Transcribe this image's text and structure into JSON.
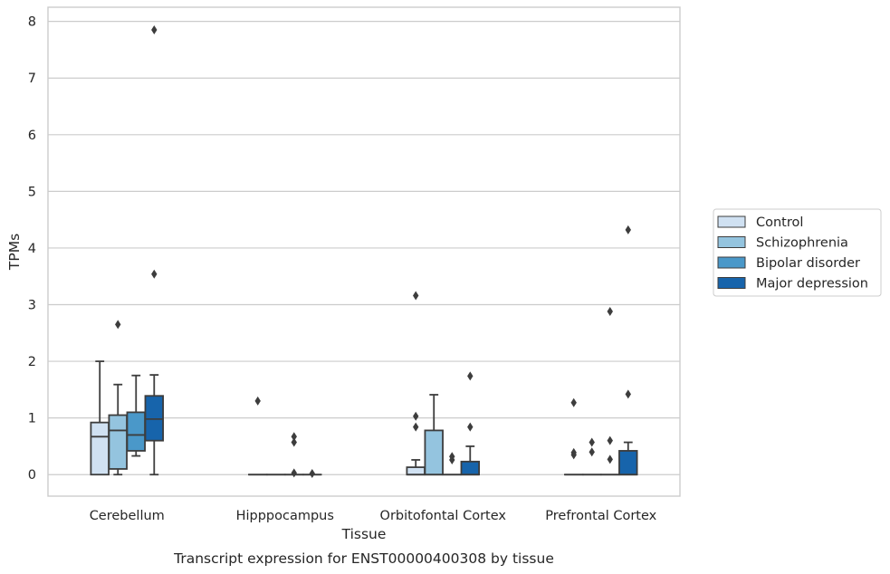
{
  "caption": "Transcript expression for ENST00000400308 by tissue",
  "chart_data": {
    "type": "box",
    "xlabel": "Tissue",
    "ylabel": "TPMs",
    "ylim": [
      -0.38,
      8.25
    ],
    "yticks": [
      0,
      1,
      2,
      3,
      4,
      5,
      6,
      7,
      8
    ],
    "grid": true,
    "legend_position": "right",
    "categories": [
      "Cerebellum",
      "Hipppocampus",
      "Orbitofontal Cortex",
      "Prefrontal Cortex"
    ],
    "series": [
      {
        "name": "Control",
        "color": "#d0e1f2",
        "boxes": [
          {
            "whislo": 0,
            "q1": 0,
            "med": 0.67,
            "q3": 0.92,
            "whishi": 2.0,
            "fliers": []
          },
          {
            "whislo": 0,
            "q1": 0,
            "med": 0,
            "q3": 0,
            "whishi": 0,
            "fliers": [
              1.3
            ]
          },
          {
            "whislo": 0,
            "q1": 0,
            "med": 0,
            "q3": 0.13,
            "whishi": 0.26,
            "fliers": [
              0.84,
              1.03,
              3.16
            ]
          },
          {
            "whislo": 0,
            "q1": 0,
            "med": 0,
            "q3": 0,
            "whishi": 0,
            "fliers": [
              0.35,
              0.39,
              1.27
            ]
          }
        ]
      },
      {
        "name": "Schizophrenia",
        "color": "#94c4df",
        "boxes": [
          {
            "whislo": 0,
            "q1": 0.1,
            "med": 0.78,
            "q3": 1.05,
            "whishi": 1.59,
            "fliers": [
              2.65
            ]
          },
          {
            "whislo": 0,
            "q1": 0,
            "med": 0,
            "q3": 0,
            "whishi": 0,
            "fliers": []
          },
          {
            "whislo": 0,
            "q1": 0,
            "med": 0,
            "q3": 0.78,
            "whishi": 1.41,
            "fliers": []
          },
          {
            "whislo": 0,
            "q1": 0,
            "med": 0,
            "q3": 0,
            "whishi": 0,
            "fliers": [
              0.4,
              0.57
            ]
          }
        ]
      },
      {
        "name": "Bipolar disorder",
        "color": "#4a98c9",
        "boxes": [
          {
            "whislo": 0.33,
            "q1": 0.42,
            "med": 0.7,
            "q3": 1.1,
            "whishi": 1.75,
            "fliers": []
          },
          {
            "whislo": 0,
            "q1": 0,
            "med": 0,
            "q3": 0,
            "whishi": 0,
            "fliers": [
              0.03,
              0.57,
              0.67
            ]
          },
          {
            "whislo": 0,
            "q1": 0,
            "med": 0,
            "q3": 0,
            "whishi": 0,
            "fliers": [
              0.26,
              0.32
            ]
          },
          {
            "whislo": 0,
            "q1": 0,
            "med": 0,
            "q3": 0,
            "whishi": 0,
            "fliers": [
              0.27,
              0.6,
              2.88
            ]
          }
        ]
      },
      {
        "name": "Major depression",
        "color": "#1764ab",
        "boxes": [
          {
            "whislo": 0,
            "q1": 0.6,
            "med": 0.98,
            "q3": 1.39,
            "whishi": 1.76,
            "fliers": [
              3.54,
              7.85
            ]
          },
          {
            "whislo": 0,
            "q1": 0,
            "med": 0,
            "q3": 0,
            "whishi": 0,
            "fliers": [
              0.02
            ]
          },
          {
            "whislo": 0,
            "q1": 0,
            "med": 0,
            "q3": 0.23,
            "whishi": 0.5,
            "fliers": [
              0.84,
              1.74
            ]
          },
          {
            "whislo": 0,
            "q1": 0,
            "med": 0,
            "q3": 0.42,
            "whishi": 0.57,
            "fliers": [
              1.42,
              4.32
            ]
          }
        ]
      }
    ]
  }
}
